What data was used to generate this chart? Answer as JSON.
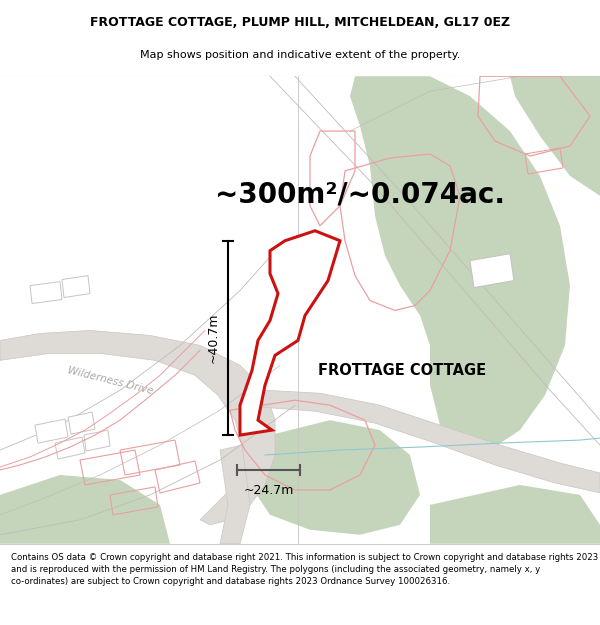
{
  "title": "FROTTAGE COTTAGE, PLUMP HILL, MITCHELDEAN, GL17 0EZ",
  "subtitle": "Map shows position and indicative extent of the property.",
  "property_label": "FROTTAGE COTTAGE",
  "area_text": "~300m²/~0.074ac.",
  "dim_vertical": "~40.7m",
  "dim_horizontal": "~24.7m",
  "road_label": "Wilderness Drive",
  "footer_text": "Contains OS data © Crown copyright and database right 2021. This information is subject to Crown copyright and database rights 2023 and is reproduced with the permission of HM Land Registry. The polygons (including the associated geometry, namely x, y co-ordinates) are subject to Crown copyright and database rights 2023 Ordnance Survey 100026316.",
  "map_bg": "#f5f2ee",
  "green_fill": "#c5d5bc",
  "red_stroke": "#e06060",
  "pink_stroke": "#e8a0a0",
  "gray_line": "#c0bcb8",
  "blue_line": "#90c8cc",
  "white": "#ffffff"
}
